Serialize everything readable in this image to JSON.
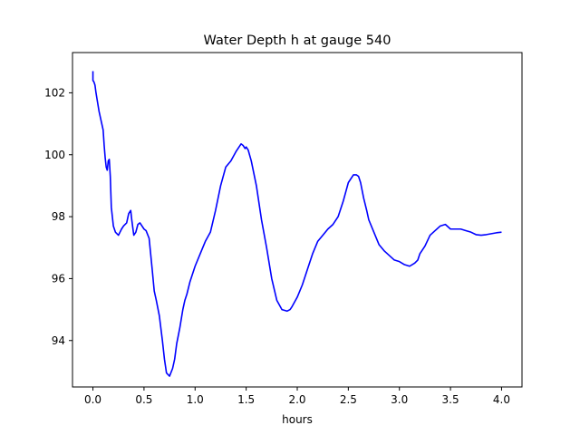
{
  "chart_data": {
    "type": "line",
    "title": "Water Depth h at gauge 540",
    "xlabel": "hours",
    "ylabel": "",
    "xlim": [
      -0.2,
      4.2
    ],
    "ylim": [
      92.5,
      103.3
    ],
    "xticks": [
      0.0,
      0.5,
      1.0,
      1.5,
      2.0,
      2.5,
      3.0,
      3.5,
      4.0
    ],
    "xtick_labels": [
      "0.0",
      "0.5",
      "1.0",
      "1.5",
      "2.0",
      "2.5",
      "3.0",
      "3.5",
      "4.0"
    ],
    "yticks": [
      94,
      96,
      98,
      100,
      102
    ],
    "ytick_labels": [
      "94",
      "96",
      "98",
      "100",
      "102"
    ],
    "grid": false,
    "series": [
      {
        "color": "#0000ff",
        "x": [
          0.0,
          0.0,
          0.01,
          0.02,
          0.03,
          0.05,
          0.06,
          0.08,
          0.1,
          0.11,
          0.12,
          0.13,
          0.14,
          0.15,
          0.16,
          0.17,
          0.18,
          0.2,
          0.22,
          0.25,
          0.28,
          0.3,
          0.33,
          0.35,
          0.37,
          0.38,
          0.4,
          0.42,
          0.44,
          0.46,
          0.48,
          0.5,
          0.52,
          0.55,
          0.58,
          0.6,
          0.62,
          0.65,
          0.68,
          0.7,
          0.72,
          0.75,
          0.78,
          0.8,
          0.82,
          0.85,
          0.88,
          0.9,
          0.92,
          0.95,
          1.0,
          1.05,
          1.1,
          1.15,
          1.2,
          1.25,
          1.3,
          1.35,
          1.4,
          1.45,
          1.47,
          1.49,
          1.5,
          1.52,
          1.55,
          1.6,
          1.65,
          1.7,
          1.75,
          1.8,
          1.85,
          1.9,
          1.93,
          1.95,
          2.0,
          2.05,
          2.1,
          2.15,
          2.2,
          2.25,
          2.3,
          2.35,
          2.4,
          2.45,
          2.5,
          2.55,
          2.58,
          2.6,
          2.62,
          2.65,
          2.68,
          2.7,
          2.75,
          2.8,
          2.85,
          2.9,
          2.95,
          3.0,
          3.05,
          3.1,
          3.15,
          3.18,
          3.2,
          3.25,
          3.3,
          3.35,
          3.4,
          3.45,
          3.5,
          3.55,
          3.6,
          3.65,
          3.7,
          3.75,
          3.8,
          3.85,
          3.9,
          3.95,
          4.0
        ],
        "values": [
          102.7,
          102.4,
          102.35,
          102.25,
          102.0,
          101.6,
          101.4,
          101.1,
          100.8,
          100.3,
          99.9,
          99.6,
          99.5,
          99.8,
          99.85,
          99.3,
          98.3,
          97.7,
          97.5,
          97.4,
          97.6,
          97.7,
          97.8,
          98.1,
          98.2,
          97.9,
          97.4,
          97.5,
          97.75,
          97.8,
          97.7,
          97.6,
          97.55,
          97.3,
          96.3,
          95.6,
          95.3,
          94.8,
          94.0,
          93.4,
          92.95,
          92.85,
          93.1,
          93.4,
          93.9,
          94.4,
          95.0,
          95.3,
          95.5,
          95.9,
          96.4,
          96.8,
          97.2,
          97.5,
          98.2,
          99.0,
          99.6,
          99.8,
          100.1,
          100.35,
          100.3,
          100.2,
          100.25,
          100.15,
          99.8,
          99.0,
          97.9,
          97.0,
          96.0,
          95.3,
          95.0,
          94.95,
          95.0,
          95.1,
          95.4,
          95.8,
          96.3,
          96.8,
          97.2,
          97.4,
          97.6,
          97.75,
          98.0,
          98.5,
          99.1,
          99.35,
          99.35,
          99.3,
          99.1,
          98.6,
          98.2,
          97.9,
          97.5,
          97.1,
          96.9,
          96.75,
          96.6,
          96.55,
          96.45,
          96.4,
          96.5,
          96.6,
          96.8,
          97.05,
          97.4,
          97.55,
          97.7,
          97.75,
          97.6,
          97.6,
          97.6,
          97.55,
          97.5,
          97.42,
          97.4,
          97.42,
          97.45,
          97.48,
          97.5
        ],
        "style": "solid"
      }
    ]
  }
}
